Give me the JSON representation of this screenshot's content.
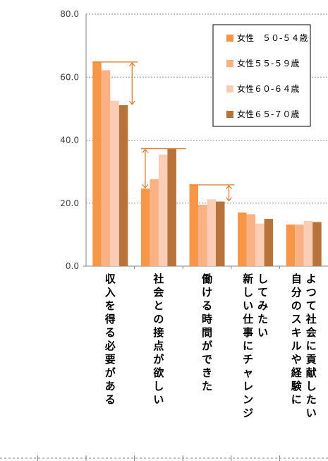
{
  "chart_data": {
    "type": "bar",
    "categories": [
      "収入を得る必要がある",
      "社会との接点が欲しい",
      "働ける時間ができた",
      "新しい仕事にチャレンジしてみたい",
      "自分のスキルや経験によつて社会に貢献したい"
    ],
    "category_columns": [
      [
        "収入を得る必要がある"
      ],
      [
        "社会との接点が欲しい"
      ],
      [
        "働ける時間ができた"
      ],
      [
        "してみたい",
        "新しい仕事にチャレンジ"
      ],
      [
        "よつて社会に貢献したい",
        "自分のスキルや経験に"
      ]
    ],
    "series": [
      {
        "name": "女性　５０-５４歳",
        "color": "#F79646",
        "values": [
          64.8,
          24.6,
          25.8,
          17.0,
          13.2
        ]
      },
      {
        "name": "女性５５-５９歳",
        "color": "#FAB184",
        "values": [
          62.2,
          27.6,
          19.5,
          16.5,
          13.2
        ]
      },
      {
        "name": "女性６０-６４歳",
        "color": "#FBCDB4",
        "values": [
          52.5,
          35.4,
          21.2,
          13.5,
          14.4
        ]
      },
      {
        "name": "女性６５-７０歳",
        "color": "#B8733A",
        "values": [
          51.1,
          37.3,
          20.5,
          15.0,
          14.0
        ]
      }
    ],
    "yticks": [
      "0.0",
      "20.0",
      "40.0",
      "60.0",
      "80.0"
    ],
    "ylim": [
      0,
      80
    ],
    "grid": true,
    "legend": "top-right",
    "annotation_color": "#D97F2E",
    "annotations": [
      {
        "category": 0,
        "from": 64.8,
        "to": 51.1
      },
      {
        "category": 1,
        "from": 24.6,
        "to": 37.3
      },
      {
        "category": 2,
        "from": 25.8,
        "to": 20.5
      }
    ]
  }
}
